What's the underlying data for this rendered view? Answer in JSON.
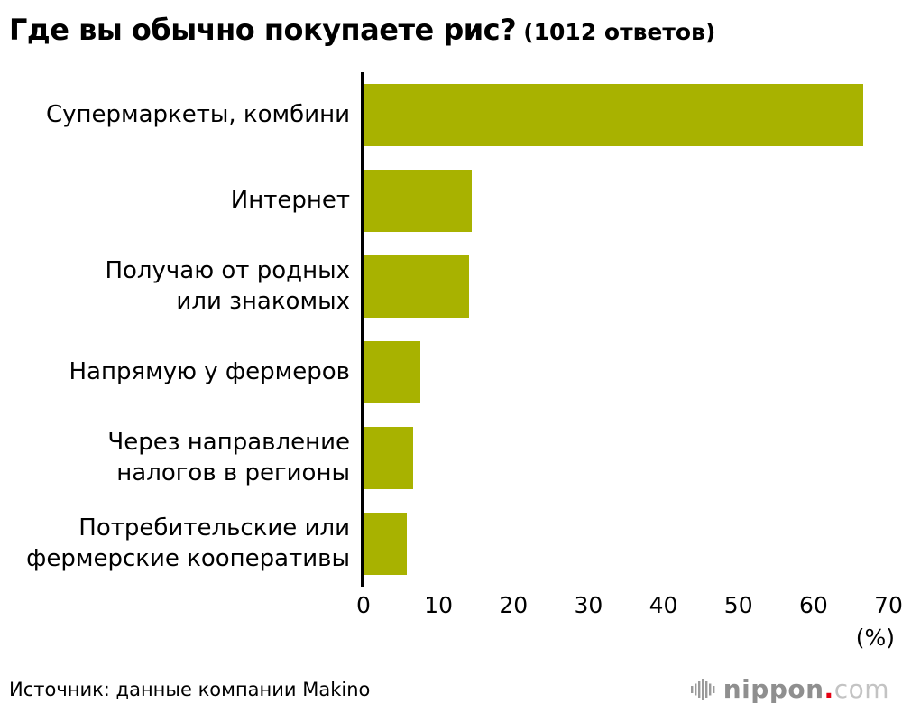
{
  "title": {
    "main": "Где вы обычно покупаете рис?",
    "suffix": "(1012 ответов)"
  },
  "chart_data": {
    "type": "bar",
    "orientation": "horizontal",
    "title": "Где вы обычно покупаете рис? (1012 ответов)",
    "categories": [
      "Супермаркеты, комбини",
      "Интернет",
      "Получаю от родных или знакомых",
      "Напрямую у фермеров",
      "Через направление налогов в регионы",
      "Потребительские или фермерские кооперативы"
    ],
    "display_labels": [
      "Супермаркеты, комбини",
      "Интернет",
      "Получаю от родных\nили знакомых",
      "Напрямую у фермеров",
      "Через направление\nналогов в регионы",
      "Потребительские или\nфермерские кооперативы"
    ],
    "values": [
      66.6,
      14.4,
      14.1,
      7.6,
      6.6,
      5.8
    ],
    "xlim": [
      0,
      70
    ],
    "ticks": [
      0,
      10,
      20,
      30,
      40,
      50,
      60,
      70
    ],
    "unit_label": "(%)",
    "bar_color": "#a8b200",
    "grid": false,
    "legend": false
  },
  "footer": {
    "source": "Источник: данные компании Makino",
    "logo": {
      "nippon": "nippon",
      "dot": ".",
      "com": "com",
      "dot_color": "#e60012",
      "icon_color": "#9a9a9a"
    }
  }
}
